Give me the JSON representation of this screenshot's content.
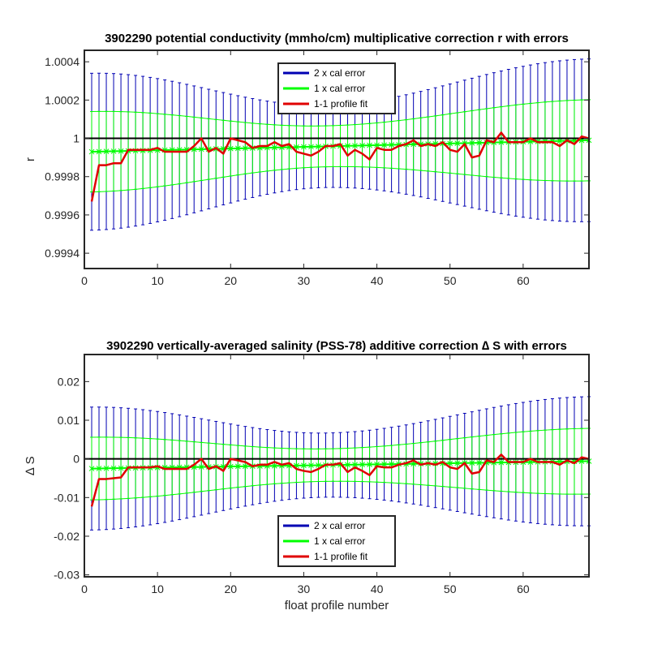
{
  "chart_data": [
    {
      "type": "line",
      "title": "3902290 potential conductivity (mmho/cm) multiplicative correction r with errors",
      "xlabel": "",
      "ylabel": "r",
      "xlim": [
        0,
        69
      ],
      "ylim": [
        0.99932,
        1.00046
      ],
      "xticks": [
        0,
        10,
        20,
        30,
        40,
        50,
        60
      ],
      "yticks": [
        0.9994,
        0.9996,
        0.9998,
        1,
        1.0002,
        1.0004
      ],
      "ytick_labels": [
        "0.9994",
        "0.9996",
        "0.9998",
        "1",
        "1.0002",
        "1.0004"
      ],
      "reference_line": 1,
      "legend": {
        "position": "top-center",
        "entries": [
          "2 x cal error",
          "1 x cal error",
          "1-1 profile fit"
        ]
      },
      "colors": {
        "two_x": "#0000b3",
        "one_x": "#00ff00",
        "fit": "#e00000",
        "reference": "#000000"
      },
      "x": [
        1,
        2,
        3,
        4,
        5,
        6,
        7,
        8,
        9,
        10,
        11,
        12,
        13,
        14,
        15,
        16,
        17,
        18,
        19,
        20,
        21,
        22,
        23,
        24,
        25,
        26,
        27,
        28,
        29,
        30,
        31,
        32,
        33,
        34,
        35,
        36,
        37,
        38,
        39,
        40,
        41,
        42,
        43,
        44,
        45,
        46,
        47,
        48,
        49,
        50,
        51,
        52,
        53,
        54,
        55,
        56,
        57,
        58,
        59,
        60,
        61,
        62,
        63,
        64,
        65,
        66,
        67,
        68,
        69
      ],
      "series": [
        {
          "name": "2 x cal error",
          "kind": "errorbar",
          "center": {
            "start": 0.99993,
            "end": 0.99999
          },
          "halfwidth": {
            "start": 0.00041,
            "middle": 0.000215,
            "end": 0.000425,
            "middle_at": 33
          }
        },
        {
          "name": "1 x cal error",
          "kind": "errorbar",
          "center": {
            "start": 0.99993,
            "end": 0.99999
          },
          "halfwidth": {
            "start": 0.00021,
            "middle": 0.000107,
            "end": 0.000212,
            "middle_at": 33
          }
        },
        {
          "name": "1-1 profile fit",
          "kind": "line",
          "values": [
            0.99967,
            0.99986,
            0.99986,
            0.99987,
            0.99987,
            0.99994,
            0.99994,
            0.99994,
            0.99994,
            0.99995,
            0.99993,
            0.99993,
            0.99993,
            0.99993,
            0.99996,
            1.0,
            0.99993,
            0.99995,
            0.99992,
            1.0,
            0.99999,
            0.99998,
            0.99995,
            0.99996,
            0.99996,
            0.99998,
            0.99996,
            0.99997,
            0.99993,
            0.99992,
            0.99991,
            0.99993,
            0.99996,
            0.99996,
            0.99997,
            0.99991,
            0.99994,
            0.99992,
            0.99989,
            0.99995,
            0.99994,
            0.99994,
            0.99996,
            0.99997,
            0.99999,
            0.99996,
            0.99997,
            0.99996,
            0.99998,
            0.99994,
            0.99993,
            0.99997,
            0.9999,
            0.99991,
            0.99999,
            0.99998,
            1.00003,
            0.99998,
            0.99998,
            0.99998,
            1.0,
            0.99998,
            0.99998,
            0.99998,
            0.99996,
            0.99999,
            0.99997,
            1.00001,
            1.0
          ]
        }
      ]
    },
    {
      "type": "line",
      "title": "3902290 vertically-averaged salinity (PSS-78) additive correction ∆ S with errors",
      "xlabel": "float profile number",
      "ylabel": "∆ S",
      "xlim": [
        0,
        69
      ],
      "ylim": [
        -0.0305,
        0.027
      ],
      "xticks": [
        0,
        10,
        20,
        30,
        40,
        50,
        60
      ],
      "yticks": [
        -0.03,
        -0.02,
        -0.01,
        0,
        0.01,
        0.02
      ],
      "ytick_labels": [
        "-0.03",
        "-0.02",
        "-0.01",
        "0",
        "0.01",
        "0.02"
      ],
      "reference_line": 0,
      "legend": {
        "position": "bottom-center",
        "entries": [
          "2 x cal error",
          "1 x cal error",
          "1-1 profile fit"
        ]
      },
      "colors": {
        "two_x": "#0000b3",
        "one_x": "#00ff00",
        "fit": "#e00000",
        "reference": "#000000"
      },
      "x": [
        1,
        2,
        3,
        4,
        5,
        6,
        7,
        8,
        9,
        10,
        11,
        12,
        13,
        14,
        15,
        16,
        17,
        18,
        19,
        20,
        21,
        22,
        23,
        24,
        25,
        26,
        27,
        28,
        29,
        30,
        31,
        32,
        33,
        34,
        35,
        36,
        37,
        38,
        39,
        40,
        41,
        42,
        43,
        44,
        45,
        46,
        47,
        48,
        49,
        50,
        51,
        52,
        53,
        54,
        55,
        56,
        57,
        58,
        59,
        60,
        61,
        62,
        63,
        64,
        65,
        66,
        67,
        68,
        69
      ],
      "series": [
        {
          "name": "2 x cal error",
          "kind": "errorbar",
          "center": {
            "start": -0.0025,
            "end": -0.0006
          },
          "halfwidth": {
            "start": 0.0159,
            "middle": 0.0083,
            "end": 0.0167,
            "middle_at": 33
          }
        },
        {
          "name": "1 x cal error",
          "kind": "errorbar",
          "center": {
            "start": -0.0025,
            "end": -0.0006
          },
          "halfwidth": {
            "start": 0.0081,
            "middle": 0.0042,
            "end": 0.0085,
            "middle_at": 33
          }
        },
        {
          "name": "1-1 profile fit",
          "kind": "line",
          "values": [
            -0.0123,
            -0.0052,
            -0.0052,
            -0.005,
            -0.0048,
            -0.0022,
            -0.0022,
            -0.0022,
            -0.0022,
            -0.0019,
            -0.0026,
            -0.0026,
            -0.0026,
            -0.0026,
            -0.0015,
            0.0,
            -0.0026,
            -0.0019,
            -0.0031,
            0.0,
            -0.0004,
            -0.0008,
            -0.0019,
            -0.0015,
            -0.0015,
            -0.0008,
            -0.0015,
            -0.0011,
            -0.0026,
            -0.0031,
            -0.0034,
            -0.0026,
            -0.0015,
            -0.0015,
            -0.0011,
            -0.0034,
            -0.0022,
            -0.0031,
            -0.0042,
            -0.0019,
            -0.0022,
            -0.0022,
            -0.0015,
            -0.0011,
            -0.0004,
            -0.0015,
            -0.0011,
            -0.0015,
            -0.0008,
            -0.0022,
            -0.0026,
            -0.0011,
            -0.0038,
            -0.0034,
            -0.0004,
            -0.0008,
            0.0011,
            -0.0008,
            -0.0008,
            -0.0008,
            0.0,
            -0.0008,
            -0.0008,
            -0.0008,
            -0.0015,
            -0.0004,
            -0.0011,
            0.0004,
            0.0
          ]
        }
      ]
    }
  ]
}
